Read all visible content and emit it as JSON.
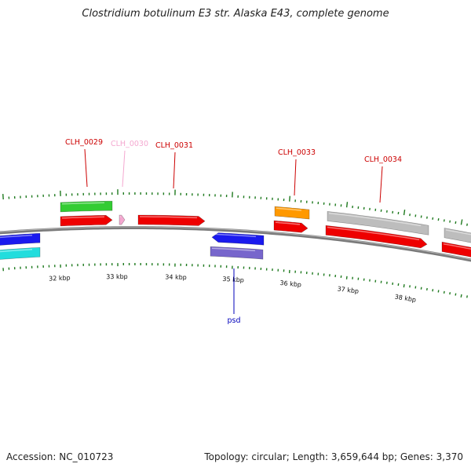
{
  "title": "Clostridium botulinum E3 str. Alaska E43, complete genome",
  "footer": {
    "accession": "Accession: NC_010723",
    "summary": "Topology: circular; Length: 3,659,644 bp; Genes: 3,370"
  },
  "colors": {
    "backbone": "#7a7a7a",
    "tick": "#1f7a1f",
    "red": "#ee0000",
    "green": "#33cc33",
    "blue": "#1a1aee",
    "cyan": "#22dddd",
    "purple": "#7766cc",
    "orange": "#ff9900",
    "grey": "#bdbdbd",
    "pink": "#f4a8d0",
    "label_red": "#cc0000",
    "label_pink": "#f4a8d0",
    "label_blue": "#0000bb"
  },
  "scale_labels": [
    "32 kbp",
    "33 kbp",
    "34 kbp",
    "35 kbp",
    "36 kbp",
    "37 kbp",
    "38 kbp"
  ],
  "gene_labels": [
    {
      "text": "CLH_0029",
      "color": "label_red"
    },
    {
      "text": "CLH_0030",
      "color": "label_pink"
    },
    {
      "text": "CLH_0031",
      "color": "label_red"
    },
    {
      "text": "CLH_0033",
      "color": "label_red"
    },
    {
      "text": "CLH_0034",
      "color": "label_red"
    },
    {
      "text": "psd",
      "color": "label_blue"
    }
  ]
}
